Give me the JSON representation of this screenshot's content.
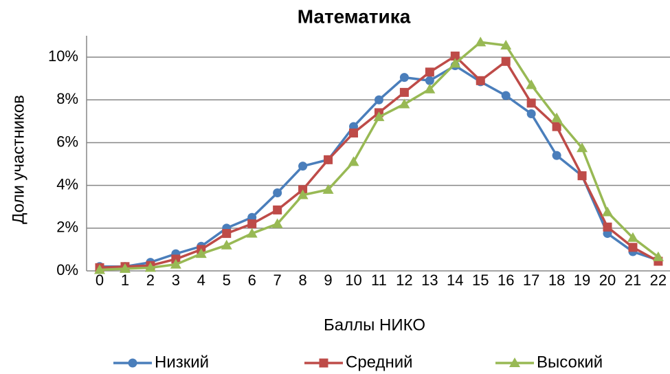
{
  "chart_data": {
    "type": "line",
    "title": "Математика",
    "xlabel": "Баллы НИКО",
    "ylabel": "Доли участников",
    "categories": [
      "0",
      "1",
      "2",
      "3",
      "4",
      "5",
      "6",
      "7",
      "8",
      "9",
      "10",
      "11",
      "12",
      "13",
      "14",
      "15",
      "16",
      "17",
      "18",
      "19",
      "20",
      "21",
      "22"
    ],
    "series": [
      {
        "name": "Низкий",
        "color": "#4a7ebb",
        "marker": "circle",
        "values": [
          0.2,
          0.2,
          0.4,
          0.8,
          1.15,
          2.0,
          2.5,
          3.65,
          4.9,
          5.2,
          6.75,
          8.0,
          9.05,
          8.9,
          9.6,
          8.85,
          8.2,
          7.35,
          5.4,
          4.45,
          1.75,
          0.9,
          0.5
        ]
      },
      {
        "name": "Средний",
        "color": "#be4b48",
        "marker": "square",
        "values": [
          0.15,
          0.2,
          0.25,
          0.55,
          1.0,
          1.75,
          2.2,
          2.85,
          3.8,
          5.2,
          6.45,
          7.4,
          8.35,
          9.3,
          10.05,
          8.9,
          9.8,
          7.85,
          6.75,
          4.45,
          2.05,
          1.1,
          0.45
        ]
      },
      {
        "name": "Высокий",
        "color": "#98b954",
        "marker": "triangle",
        "values": [
          0.05,
          0.1,
          0.15,
          0.3,
          0.8,
          1.2,
          1.75,
          2.2,
          3.55,
          3.8,
          5.1,
          7.2,
          7.8,
          8.5,
          9.7,
          10.7,
          10.55,
          8.7,
          7.15,
          5.75,
          2.75,
          1.55,
          0.65
        ]
      }
    ],
    "ylim": [
      0,
      11
    ],
    "yticks": [
      {
        "value": 0,
        "label": "0%"
      },
      {
        "value": 2,
        "label": "2%"
      },
      {
        "value": 4,
        "label": "4%"
      },
      {
        "value": 6,
        "label": "6%"
      },
      {
        "value": 8,
        "label": "8%"
      },
      {
        "value": 10,
        "label": "10%"
      }
    ],
    "grid": true,
    "legend": "bottom"
  }
}
